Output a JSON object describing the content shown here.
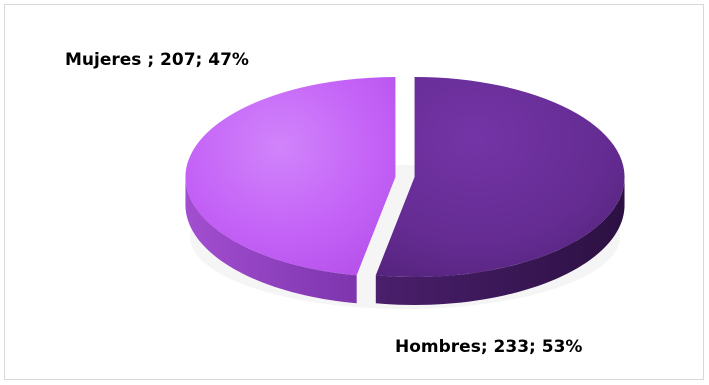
{
  "chart_data": {
    "type": "pie",
    "categories": [
      "Mujeres",
      "Hombres"
    ],
    "values": [
      207,
      233
    ],
    "percents": [
      47,
      53
    ],
    "labels": [
      "Mujeres ; 207; 47%",
      "Hombres; 233; 53%"
    ],
    "colors": {
      "Mujeres": {
        "top": "#c462f7",
        "side": "#8f3fc0"
      },
      "Hombres": {
        "top": "#682d96",
        "side": "#3a1856"
      }
    },
    "exploded": true,
    "style": "3d",
    "legend": "none"
  }
}
